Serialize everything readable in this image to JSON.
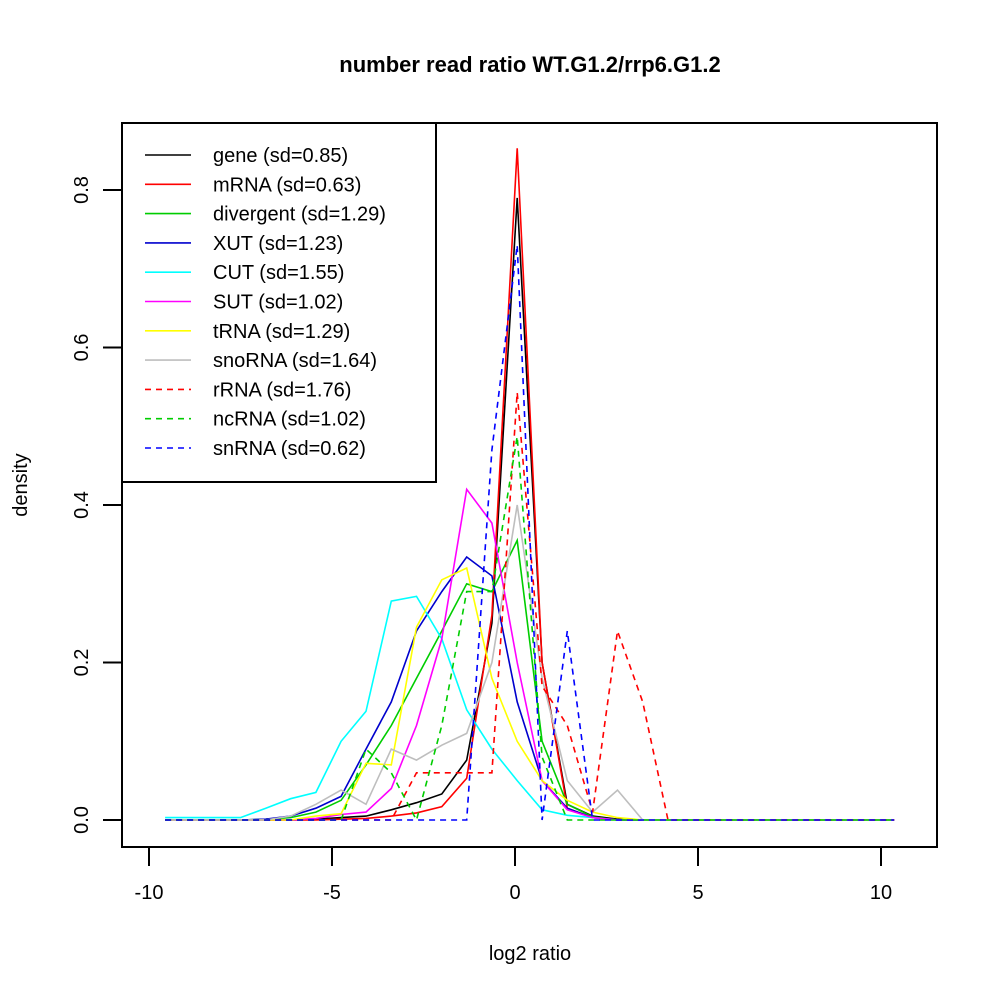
{
  "chart_data": {
    "type": "line",
    "title": "number read ratio WT.G1.2/rrp6.G1.2",
    "xlabel": "log2 ratio",
    "ylabel": "density",
    "xlim": [
      -10.5,
      11.5
    ],
    "ylim": [
      -0.035,
      0.885
    ],
    "xticks": [
      -10,
      -5,
      0,
      5,
      10
    ],
    "xtick_labels": [
      "-10",
      "-5",
      "0",
      "5",
      "10"
    ],
    "yticks": [
      0.0,
      0.2,
      0.4,
      0.6,
      0.8
    ],
    "ytick_labels": [
      "0.0",
      "0.2",
      "0.4",
      "0.6",
      "0.8"
    ],
    "grid": false,
    "legend_position": "top-left",
    "x": [
      -9.56,
      -8.87,
      -8.19,
      -7.5,
      -6.81,
      -6.13,
      -5.44,
      -4.75,
      -4.07,
      -3.38,
      -2.69,
      -2.0,
      -1.32,
      -0.63,
      0.06,
      0.74,
      1.43,
      2.12,
      2.8,
      3.49,
      4.18,
      4.86,
      5.55,
      6.24,
      6.92,
      7.61,
      8.3,
      8.98,
      9.67,
      10.36
    ],
    "series": [
      {
        "name": "gene (sd=0.85)",
        "color": "#000000",
        "dash": false,
        "values": [
          0,
          0,
          0,
          0,
          0,
          0,
          0.001,
          0.003,
          0.005,
          0.013,
          0.022,
          0.033,
          0.076,
          0.25,
          0.79,
          0.2,
          0.02,
          0.005,
          0.001,
          0,
          0,
          0,
          0,
          0,
          0,
          0,
          0,
          0,
          0,
          0
        ]
      },
      {
        "name": "mRNA (sd=0.63)",
        "color": "#ff0000",
        "dash": false,
        "values": [
          0,
          0,
          0,
          0,
          0,
          0,
          0,
          0.001,
          0.002,
          0.005,
          0.009,
          0.017,
          0.053,
          0.26,
          0.853,
          0.2,
          0.015,
          0.003,
          0,
          0,
          0,
          0,
          0,
          0,
          0,
          0,
          0,
          0,
          0,
          0
        ]
      },
      {
        "name": "divergent (sd=1.29)",
        "color": "#00cd00",
        "dash": false,
        "values": [
          0,
          0,
          0,
          0,
          0.001,
          0.003,
          0.01,
          0.025,
          0.07,
          0.12,
          0.18,
          0.24,
          0.3,
          0.29,
          0.355,
          0.1,
          0.02,
          0.004,
          0,
          0,
          0,
          0,
          0,
          0,
          0,
          0,
          0,
          0,
          0,
          0
        ]
      },
      {
        "name": "XUT (sd=1.23)",
        "color": "#0000cd",
        "dash": false,
        "values": [
          0,
          0,
          0,
          0,
          0.001,
          0.005,
          0.015,
          0.03,
          0.09,
          0.15,
          0.24,
          0.29,
          0.334,
          0.31,
          0.15,
          0.05,
          0.015,
          0.003,
          0,
          0,
          0,
          0,
          0,
          0,
          0,
          0,
          0,
          0,
          0,
          0
        ]
      },
      {
        "name": "CUT (sd=1.55)",
        "color": "#00ffff",
        "dash": false,
        "values": [
          0.003,
          0.003,
          0.003,
          0.003,
          0.015,
          0.027,
          0.035,
          0.1,
          0.138,
          0.278,
          0.284,
          0.23,
          0.14,
          0.09,
          0.05,
          0.013,
          0.006,
          0.003,
          0,
          0,
          0,
          0,
          0,
          0,
          0,
          0,
          0,
          0,
          0,
          0
        ]
      },
      {
        "name": "SUT (sd=1.02)",
        "color": "#ff00ff",
        "dash": false,
        "values": [
          0,
          0,
          0,
          0,
          0,
          0,
          0.002,
          0.007,
          0.01,
          0.04,
          0.12,
          0.23,
          0.42,
          0.377,
          0.2,
          0.05,
          0.013,
          0.003,
          0,
          0,
          0,
          0,
          0,
          0,
          0,
          0,
          0,
          0,
          0,
          0
        ]
      },
      {
        "name": "tRNA (sd=1.29)",
        "color": "#ffff00",
        "dash": false,
        "values": [
          0,
          0,
          0,
          0,
          0,
          0,
          0.005,
          0.008,
          0.072,
          0.07,
          0.245,
          0.305,
          0.32,
          0.18,
          0.1,
          0.05,
          0.025,
          0.01,
          0.003,
          0,
          0,
          0,
          0,
          0,
          0,
          0,
          0,
          0,
          0,
          0
        ]
      },
      {
        "name": "snoRNA (sd=1.64)",
        "color": "#bebebe",
        "dash": false,
        "values": [
          0,
          0,
          0,
          0,
          0,
          0.005,
          0.02,
          0.038,
          0.02,
          0.09,
          0.076,
          0.095,
          0.11,
          0.2,
          0.4,
          0.18,
          0.05,
          0.01,
          0.038,
          0,
          0,
          0,
          0,
          0,
          0,
          0,
          0,
          0,
          0,
          0
        ]
      },
      {
        "name": "rRNA (sd=1.76)",
        "color": "#ff0000",
        "dash": true,
        "values": [
          0,
          0,
          0,
          0,
          0,
          0,
          0,
          0,
          0,
          0,
          0.06,
          0.06,
          0.06,
          0.06,
          0.543,
          0.17,
          0.12,
          0.01,
          0.24,
          0.15,
          0,
          0,
          0,
          0,
          0,
          0,
          0,
          0,
          0,
          0
        ]
      },
      {
        "name": "ncRNA (sd=1.02)",
        "color": "#00cd00",
        "dash": true,
        "values": [
          0,
          0,
          0,
          0,
          0,
          0,
          0,
          0,
          0.09,
          0.06,
          0,
          0.12,
          0.29,
          0.29,
          0.487,
          0.08,
          0,
          0,
          0,
          0,
          0,
          0,
          0,
          0,
          0,
          0,
          0,
          0,
          0,
          0
        ]
      },
      {
        "name": "snRNA (sd=0.62)",
        "color": "#0000ff",
        "dash": true,
        "values": [
          0,
          0,
          0,
          0,
          0,
          0,
          0,
          0,
          0,
          0,
          0,
          0,
          0,
          0.47,
          0.73,
          0,
          0.24,
          0,
          0,
          0,
          0,
          0,
          0,
          0,
          0,
          0,
          0,
          0,
          0,
          0
        ]
      }
    ]
  }
}
